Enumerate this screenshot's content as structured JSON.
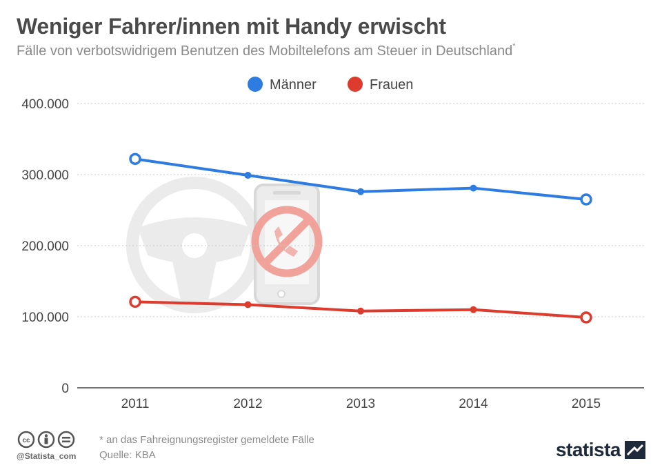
{
  "header": {
    "title": "Weniger Fahrer/innen mit Handy erwischt",
    "subtitle": "Fälle von verbotswidrigem Benutzen des Mobiltelefons am Steuer in Deutschland",
    "subtitle_marker": "*"
  },
  "chart_data": {
    "type": "line",
    "title": "Weniger Fahrer/innen mit Handy erwischt",
    "subtitle": "Fälle von verbotswidrigem Benutzen des Mobiltelefons am Steuer in Deutschland",
    "xlabel": "",
    "ylabel": "",
    "categories": [
      "2011",
      "2012",
      "2013",
      "2014",
      "2015"
    ],
    "series": [
      {
        "name": "Männer",
        "color": "#2e7ce2",
        "values": [
          322000,
          299000,
          276000,
          281000,
          265000
        ]
      },
      {
        "name": "Frauen",
        "color": "#dd3b2d",
        "values": [
          121000,
          117000,
          108000,
          110000,
          99000
        ]
      }
    ],
    "ylim": [
      0,
      400000
    ],
    "yticks": [
      0,
      100000,
      200000,
      300000,
      400000
    ],
    "ytick_labels": [
      "0",
      "100.000",
      "200.000",
      "300.000",
      "400.000"
    ],
    "grid": true,
    "legend_position": "top-center"
  },
  "footer": {
    "note": "* an das Fahreignungsregister gemeldete Fälle",
    "source": "Quelle: KBA",
    "handle": "@Statista_com",
    "brand": "statista"
  },
  "icons": [
    "steering-wheel-icon",
    "phone-prohibited-icon",
    "creative-commons-icon",
    "attribution-icon",
    "no-derivatives-icon",
    "statista-logo-icon"
  ]
}
